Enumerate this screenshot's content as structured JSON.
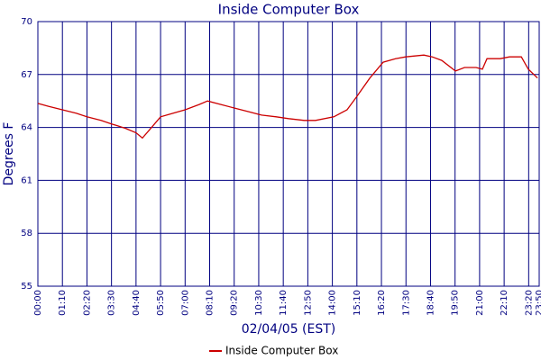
{
  "chart_data": {
    "type": "line",
    "title": "Inside Computer Box",
    "xlabel": "02/04/05 (EST)",
    "ylabel": "Degrees F",
    "x": [
      0,
      30,
      70,
      110,
      140,
      180,
      210,
      250,
      280,
      298,
      320,
      350,
      385,
      420,
      460,
      484,
      522,
      560,
      600,
      638,
      680,
      715,
      760,
      792,
      844,
      882,
      908,
      947,
      985,
      1020,
      1049,
      1075,
      1101,
      1125,
      1152,
      1191,
      1217,
      1250,
      1268,
      1281,
      1319,
      1345,
      1379,
      1399,
      1425
    ],
    "series": [
      {
        "name": "Inside Computer Box",
        "color": "#cc0000",
        "values": [
          65.36,
          65.2,
          65.0,
          64.8,
          64.6,
          64.4,
          64.2,
          63.95,
          63.7,
          63.4,
          63.9,
          64.6,
          64.8,
          65.0,
          65.3,
          65.5,
          65.3,
          65.1,
          64.9,
          64.7,
          64.6,
          64.5,
          64.4,
          64.4,
          64.6,
          65.0,
          65.7,
          66.8,
          67.7,
          67.9,
          68.0,
          68.05,
          68.1,
          68.0,
          67.8,
          67.2,
          67.4,
          67.4,
          67.3,
          67.9,
          67.9,
          68.0,
          68.0,
          67.3,
          66.8
        ]
      }
    ],
    "xlim": [
      0,
      1430
    ],
    "xticks": [
      {
        "value": 0,
        "label": "00:00"
      },
      {
        "value": 70,
        "label": "01:10"
      },
      {
        "value": 140,
        "label": "02:20"
      },
      {
        "value": 210,
        "label": "03:30"
      },
      {
        "value": 280,
        "label": "04:40"
      },
      {
        "value": 350,
        "label": "05:50"
      },
      {
        "value": 420,
        "label": "07:00"
      },
      {
        "value": 490,
        "label": "08:10"
      },
      {
        "value": 560,
        "label": "09:20"
      },
      {
        "value": 630,
        "label": "10:30"
      },
      {
        "value": 700,
        "label": "11:40"
      },
      {
        "value": 770,
        "label": "12:50"
      },
      {
        "value": 840,
        "label": "14:00"
      },
      {
        "value": 910,
        "label": "15:10"
      },
      {
        "value": 980,
        "label": "16:20"
      },
      {
        "value": 1050,
        "label": "17:30"
      },
      {
        "value": 1120,
        "label": "18:40"
      },
      {
        "value": 1190,
        "label": "19:50"
      },
      {
        "value": 1260,
        "label": "21:00"
      },
      {
        "value": 1330,
        "label": "22:10"
      },
      {
        "value": 1400,
        "label": "23:20"
      },
      {
        "value": 1430,
        "label": "23:50"
      }
    ],
    "ylim": [
      55,
      70
    ],
    "yticks": [
      55,
      58,
      61,
      64,
      67,
      70
    ],
    "grid": true,
    "legend": "bottom"
  }
}
